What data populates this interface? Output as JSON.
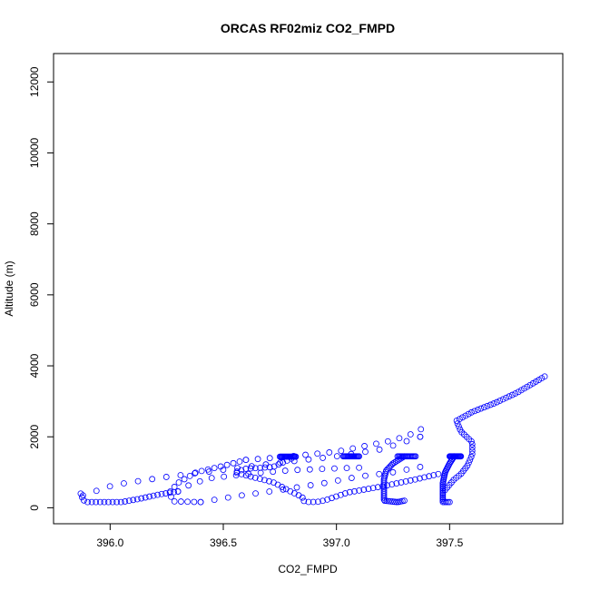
{
  "chart_data": {
    "type": "scatter",
    "title": "ORCAS RF02miz CO2_FMPD",
    "xlabel": "CO2_FMPD",
    "ylabel": "Altitude (m)",
    "xlim": [
      395.75,
      398.0
    ],
    "ylim": [
      -450,
      12800
    ],
    "xticks": [
      396.0,
      396.5,
      397.0,
      397.5
    ],
    "xtick_labels": [
      "396.0",
      "396.5",
      "397.0",
      "397.5"
    ],
    "yticks": [
      0,
      2000,
      4000,
      6000,
      8000,
      10000,
      12000
    ],
    "ytick_labels": [
      "0",
      "2000",
      "4000",
      "6000",
      "8000",
      "10000",
      "12000"
    ],
    "marker": "open-circle",
    "marker_color": "#0000ff",
    "grid": false,
    "legend": "none",
    "segments": [
      {
        "path": [
          [
            395.88,
            350
          ],
          [
            396.02,
            650
          ],
          [
            396.25,
            870
          ],
          [
            396.5,
            1070
          ],
          [
            396.75,
            1270
          ],
          [
            397.0,
            1450
          ],
          [
            397.2,
            1650
          ],
          [
            397.37,
            2000
          ]
        ],
        "n": 25
      },
      {
        "path": [
          [
            397.37,
            2000
          ],
          [
            397.38,
            2250
          ],
          [
            397.36,
            2140
          ],
          [
            397.25,
            1900
          ],
          [
            397.0,
            1580
          ],
          [
            396.75,
            1420
          ],
          [
            396.6,
            1350
          ]
        ],
        "n": 17
      },
      {
        "path": [
          [
            395.87,
            400
          ],
          [
            395.88,
            220
          ],
          [
            395.9,
            160
          ],
          [
            396.05,
            160
          ],
          [
            396.12,
            240
          ],
          [
            396.22,
            380
          ],
          [
            396.3,
            460
          ]
        ],
        "n": 26
      },
      {
        "path": [
          [
            396.6,
            1350
          ],
          [
            396.5,
            1180
          ],
          [
            396.38,
            1000
          ],
          [
            396.3,
            700
          ],
          [
            396.26,
            420
          ],
          [
            396.28,
            180
          ],
          [
            396.4,
            160
          ]
        ],
        "n": 20
      },
      {
        "path": [
          [
            396.3,
            460
          ],
          [
            396.36,
            680
          ],
          [
            396.45,
            840
          ],
          [
            396.62,
            960
          ],
          [
            396.8,
            1060
          ],
          [
            397.0,
            1110
          ],
          [
            397.1,
            1130
          ]
        ],
        "n": 16
      },
      {
        "path": [
          [
            396.4,
            160
          ],
          [
            396.55,
            320
          ],
          [
            396.75,
            500
          ],
          [
            396.95,
            700
          ],
          [
            397.1,
            880
          ],
          [
            397.25,
            1000
          ],
          [
            397.37,
            1150
          ]
        ],
        "n": 17
      },
      {
        "path": [
          [
            396.75,
            1440
          ],
          [
            396.82,
            1440
          ]
        ],
        "n": 20
      },
      {
        "path": [
          [
            396.82,
            1440
          ],
          [
            396.72,
            1150
          ],
          [
            396.6,
            1100
          ],
          [
            396.55,
            1000
          ],
          [
            396.62,
            880
          ],
          [
            396.72,
            720
          ],
          [
            396.8,
            450
          ],
          [
            396.85,
            300
          ],
          [
            396.85,
            200
          ],
          [
            396.88,
            160
          ],
          [
            396.92,
            170
          ],
          [
            396.95,
            210
          ],
          [
            397.05,
            430
          ],
          [
            397.2,
            600
          ],
          [
            397.35,
            800
          ],
          [
            397.45,
            950
          ]
        ],
        "n": 60
      },
      {
        "path": [
          [
            397.03,
            1450
          ],
          [
            397.1,
            1450
          ]
        ],
        "n": 18
      },
      {
        "path": [
          [
            397.27,
            1450
          ],
          [
            397.35,
            1450
          ]
        ],
        "n": 18
      },
      {
        "path": [
          [
            397.3,
            1450
          ],
          [
            397.25,
            1250
          ],
          [
            397.22,
            1050
          ],
          [
            397.21,
            800
          ],
          [
            397.21,
            500
          ],
          [
            397.21,
            200
          ],
          [
            397.27,
            160
          ],
          [
            397.3,
            200
          ]
        ],
        "n": 40
      },
      {
        "path": [
          [
            397.5,
            1450
          ],
          [
            397.55,
            1450
          ]
        ],
        "n": 18
      },
      {
        "path": [
          [
            397.52,
            1450
          ],
          [
            397.5,
            1250
          ],
          [
            397.48,
            1000
          ],
          [
            397.47,
            700
          ],
          [
            397.47,
            400
          ],
          [
            397.47,
            160
          ],
          [
            397.5,
            160
          ]
        ],
        "n": 36
      },
      {
        "path": [
          [
            397.48,
            500
          ],
          [
            397.5,
            650
          ],
          [
            397.52,
            800
          ],
          [
            397.55,
            950
          ],
          [
            397.58,
            1200
          ],
          [
            397.6,
            1500
          ],
          [
            397.6,
            1850
          ],
          [
            397.55,
            2150
          ],
          [
            397.53,
            2450
          ],
          [
            397.6,
            2700
          ],
          [
            397.7,
            2950
          ],
          [
            397.8,
            3250
          ],
          [
            397.92,
            3700
          ]
        ],
        "n": 56
      }
    ]
  }
}
